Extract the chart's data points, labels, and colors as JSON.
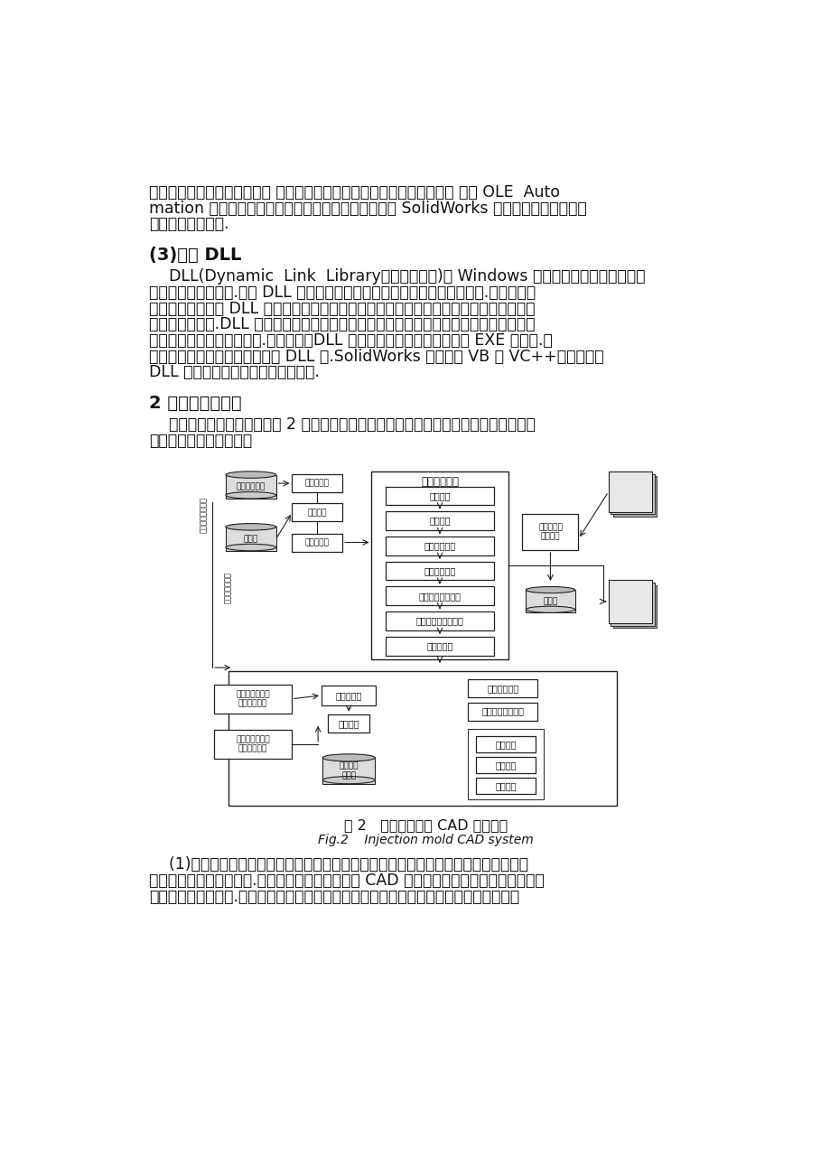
{
  "bg_color": "#ffffff",
  "text_color": "#111111",
  "para1_lines": [
    "另一个应用程序的属性和方法 可以定制对象并提供应用程序间的互操作件 通过 OLE  Auto",
    "mation 接口技术，面向对象的编程语言可以直接操纵 SolidWorks 的对象的属性和方法满",
    "足二次开发的需要."
  ],
  "heading1": "(3)关于 DLL",
  "para2_lines": [
    "    DLL(Dynamic  Link  Library，动态链接库)是 Windows 操作系统提供的共享可执行",
    "代码数据的基本手段.利用 DLL 可实现代码的数据共享，很容易实现版本升级.必要时，开",
    "发者只需直接更新 DLL 而不用对应用程序本身作任何改动就可以对应用程序的功能和用户",
    "接口作较大改善.DLL 通常作为进程内组件被实现，当它被调入内存时，被装入与调用它的",
    "应用程序相同的地址空间上.运行它时，DLL 文件被连接，但它并不绑定到 EXE 文件中.用",
    "户可以调用第三方或自己开发的 DLL 库.SolidWorks 支持使用 VB 或 VC++等语言开发",
    "DLL 库文件，并且以插件的方式加载."
  ],
  "heading2": "2 系统的总体构架",
  "para3_lines": [
    "    智能注塑模具设计系统如图 2 所示，主要分为产品建模、模具自动设计、校核和分析、",
    "结果反馈修改四个模块。"
  ],
  "fig_caption1": "图 2   注塑模具设计 CAD 系统框图",
  "fig_caption2": "Fig.2    Injection mold CAD system",
  "para4_lines": [
    "    (1)产品建模：产品建模的目的不仅要设计出满足要求的塑件，更重要的在于设计、制",
    "造出生产这种塑件的模具.通过产品模型，应为模具 CAD 提供足够的信息，为自动生成模具",
    "成型零部件提供条件.产品特征建模模块主要提供的信息有：模型的尺寸、材料、分型面对"
  ]
}
